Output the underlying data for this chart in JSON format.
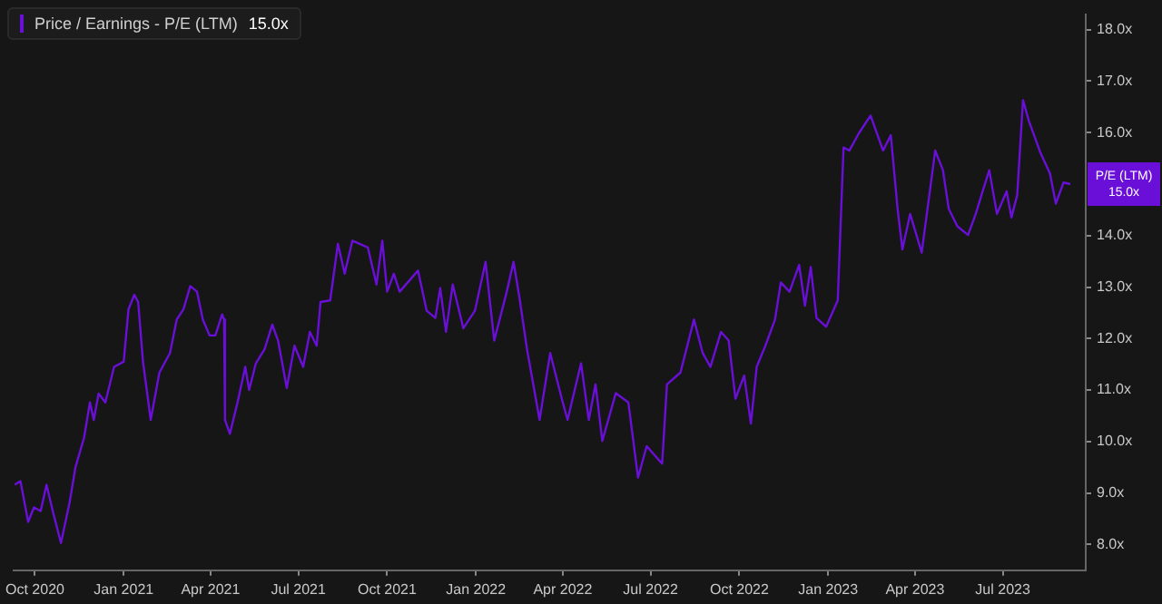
{
  "chart_data": {
    "type": "line",
    "x": [
      "2020-09-10",
      "2020-09-16",
      "2020-09-24",
      "2020-09-30",
      "2020-10-07",
      "2020-10-13",
      "2020-10-20",
      "2020-10-28",
      "2020-11-06",
      "2020-11-12",
      "2020-11-21",
      "2020-11-27",
      "2020-12-01",
      "2020-12-06",
      "2020-12-13",
      "2020-12-22",
      "2021-01-01",
      "2021-01-06",
      "2021-01-12",
      "2021-01-16",
      "2021-01-21",
      "2021-01-29",
      "2021-02-07",
      "2021-02-18",
      "2021-02-25",
      "2021-03-04",
      "2021-03-11",
      "2021-03-18",
      "2021-03-24",
      "2021-03-31",
      "2021-04-06",
      "2021-04-13",
      "2021-04-15",
      "2021-04-16",
      "2021-04-21",
      "2021-04-29",
      "2021-05-07",
      "2021-05-11",
      "2021-05-18",
      "2021-05-27",
      "2021-06-04",
      "2021-06-10",
      "2021-06-19",
      "2021-06-27",
      "2021-07-06",
      "2021-07-13",
      "2021-07-20",
      "2021-07-24",
      "2021-08-03",
      "2021-08-11",
      "2021-08-18",
      "2021-08-26",
      "2021-09-11",
      "2021-09-20",
      "2021-09-26",
      "2021-10-01",
      "2021-10-08",
      "2021-10-14",
      "2021-11-02",
      "2021-11-11",
      "2021-11-20",
      "2021-11-25",
      "2021-12-01",
      "2021-12-08",
      "2021-12-19",
      "2021-12-31",
      "2022-01-11",
      "2022-01-20",
      "2022-02-02",
      "2022-02-09",
      "2022-02-15",
      "2022-02-23",
      "2022-03-08",
      "2022-03-19",
      "2022-03-31",
      "2022-04-06",
      "2022-04-20",
      "2022-04-28",
      "2022-05-05",
      "2022-05-12",
      "2022-05-26",
      "2022-06-08",
      "2022-06-18",
      "2022-06-27",
      "2022-07-13",
      "2022-07-18",
      "2022-08-01",
      "2022-08-15",
      "2022-08-24",
      "2022-09-01",
      "2022-09-12",
      "2022-09-20",
      "2022-09-27",
      "2022-10-06",
      "2022-10-13",
      "2022-10-19",
      "2022-10-28",
      "2022-11-07",
      "2022-11-13",
      "2022-11-22",
      "2022-12-02",
      "2022-12-08",
      "2022-12-14",
      "2022-12-20",
      "2022-12-30",
      "2023-01-11",
      "2023-01-17",
      "2023-01-23",
      "2023-02-02",
      "2023-02-14",
      "2023-02-27",
      "2023-03-07",
      "2023-03-14",
      "2023-03-19",
      "2023-03-27",
      "2023-04-08",
      "2023-04-22",
      "2023-04-30",
      "2023-05-06",
      "2023-05-15",
      "2023-05-26",
      "2023-06-03",
      "2023-06-09",
      "2023-06-17",
      "2023-06-25",
      "2023-07-05",
      "2023-07-10",
      "2023-07-16",
      "2023-07-22",
      "2023-07-28",
      "2023-08-09",
      "2023-08-19",
      "2023-08-25",
      "2023-09-02",
      "2023-09-09"
    ],
    "series": [
      {
        "name": "Price / Earnings - P/E (LTM)",
        "color": "#6a0fd8",
        "values": [
          9.16,
          9.23,
          8.44,
          8.72,
          8.65,
          9.16,
          8.61,
          8.03,
          8.82,
          9.5,
          10.08,
          10.76,
          10.42,
          10.93,
          10.76,
          11.45,
          11.55,
          12.57,
          12.85,
          12.71,
          11.55,
          10.42,
          11.34,
          11.72,
          12.37,
          12.57,
          13.02,
          12.91,
          12.37,
          12.06,
          12.06,
          12.47,
          12.37,
          10.42,
          10.15,
          10.76,
          11.45,
          11.0,
          11.52,
          11.79,
          12.27,
          11.96,
          11.04,
          11.86,
          11.45,
          12.13,
          11.86,
          12.71,
          12.74,
          13.84,
          13.26,
          13.9,
          13.77,
          13.05,
          13.9,
          12.91,
          13.26,
          12.91,
          13.32,
          12.54,
          12.4,
          12.98,
          12.13,
          13.05,
          12.2,
          12.54,
          13.49,
          11.96,
          12.91,
          13.49,
          12.81,
          11.79,
          10.42,
          11.72,
          10.83,
          10.42,
          11.52,
          10.42,
          11.11,
          10.01,
          10.94,
          10.76,
          9.3,
          9.91,
          9.57,
          11.11,
          11.34,
          12.37,
          11.72,
          11.45,
          12.13,
          11.96,
          10.83,
          11.28,
          10.35,
          11.45,
          11.86,
          12.37,
          13.09,
          12.91,
          13.43,
          12.64,
          13.39,
          12.4,
          12.23,
          12.74,
          15.71,
          15.65,
          15.99,
          16.33,
          15.65,
          15.95,
          14.52,
          13.73,
          14.42,
          13.67,
          15.65,
          15.27,
          14.52,
          14.18,
          14.01,
          14.42,
          14.79,
          15.27,
          14.42,
          14.86,
          14.35,
          14.79,
          16.63,
          16.23,
          15.61,
          15.2,
          14.62,
          15.03,
          15.0
        ]
      }
    ],
    "xlim": [
      "2020-09-09",
      "2023-09-25"
    ],
    "xticks": [
      {
        "value": "2020-10-01",
        "label": "Oct 2020"
      },
      {
        "value": "2021-01-01",
        "label": "Jan 2021"
      },
      {
        "value": "2021-04-01",
        "label": "Apr 2021"
      },
      {
        "value": "2021-07-01",
        "label": "Jul 2021"
      },
      {
        "value": "2021-10-01",
        "label": "Oct 2021"
      },
      {
        "value": "2022-01-01",
        "label": "Jan 2022"
      },
      {
        "value": "2022-04-01",
        "label": "Apr 2022"
      },
      {
        "value": "2022-07-01",
        "label": "Jul 2022"
      },
      {
        "value": "2022-10-01",
        "label": "Oct 2022"
      },
      {
        "value": "2023-01-01",
        "label": "Jan 2023"
      },
      {
        "value": "2023-04-01",
        "label": "Apr 2023"
      },
      {
        "value": "2023-07-01",
        "label": "Jul 2023"
      }
    ],
    "ylim": [
      7.5,
      18.3
    ],
    "yticks": [
      {
        "value": 8,
        "label": "8.0x"
      },
      {
        "value": 9,
        "label": "9.0x"
      },
      {
        "value": 10,
        "label": "10.0x"
      },
      {
        "value": 11,
        "label": "11.0x"
      },
      {
        "value": 12,
        "label": "12.0x"
      },
      {
        "value": 13,
        "label": "13.0x"
      },
      {
        "value": 14,
        "label": "14.0x"
      },
      {
        "value": 16,
        "label": "16.0x"
      },
      {
        "value": 17,
        "label": "17.0x"
      },
      {
        "value": 18,
        "label": "18.0x"
      }
    ],
    "annotations": [
      "15.0x",
      {
        "text": "P/E (LTM)\n15.0x",
        "x": "2023-09-09",
        "y": 15.0
      }
    ],
    "grid": false,
    "legend": "top left",
    "marker": "none",
    "line_style": "solid"
  }
}
